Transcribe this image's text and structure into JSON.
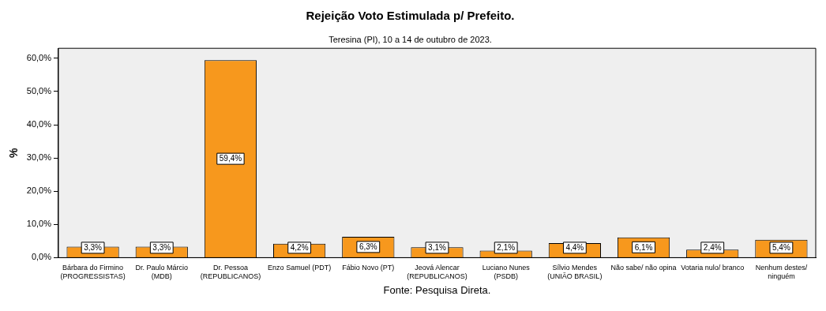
{
  "chart_data": {
    "type": "bar",
    "title": "Rejeição Voto Estimulada p/ Prefeito.",
    "subtitle": "Teresina (PI), 10 a 14 de outubro de 2023.",
    "ylabel": "%",
    "categories": [
      "Bárbara do Firmino\n(PROGRESSISTAS)",
      "Dr. Paulo Márcio\n(MDB)",
      "Dr. Pessoa\n(REPUBLICANOS)",
      "Enzo Samuel (PDT)",
      "Fábio Novo (PT)",
      "Jeová Alencar\n(REPUBLICANOS)",
      "Luciano Nunes\n(PSDB)",
      "Sílvio Mendes\n(UNIÃO BRASIL)",
      "Não sabe/ não opina",
      "Votaria nulo/ branco",
      "Nenhum destes/\nninguém"
    ],
    "values": [
      3.3,
      3.3,
      59.4,
      4.2,
      6.3,
      3.1,
      2.1,
      4.4,
      6.1,
      2.4,
      5.4
    ],
    "value_labels": [
      "3,3%",
      "3,3%",
      "59,4%",
      "4,2%",
      "6,3%",
      "3,1%",
      "2,1%",
      "4,4%",
      "6,1%",
      "2,4%",
      "5,4%"
    ],
    "color": "#f7981d",
    "ylim": [
      0,
      63
    ],
    "yticks": [
      {
        "value": 0,
        "label": "0,0%"
      },
      {
        "value": 10,
        "label": "10,0%"
      },
      {
        "value": 20,
        "label": "20,0%"
      },
      {
        "value": 30,
        "label": "30,0%"
      },
      {
        "value": 40,
        "label": "40,0%"
      },
      {
        "value": 50,
        "label": "50,0%"
      },
      {
        "value": 60,
        "label": "60,0%"
      }
    ],
    "grid": false,
    "legend": false,
    "annotations": [
      "Fonte: Pesquisa Direta."
    ]
  }
}
